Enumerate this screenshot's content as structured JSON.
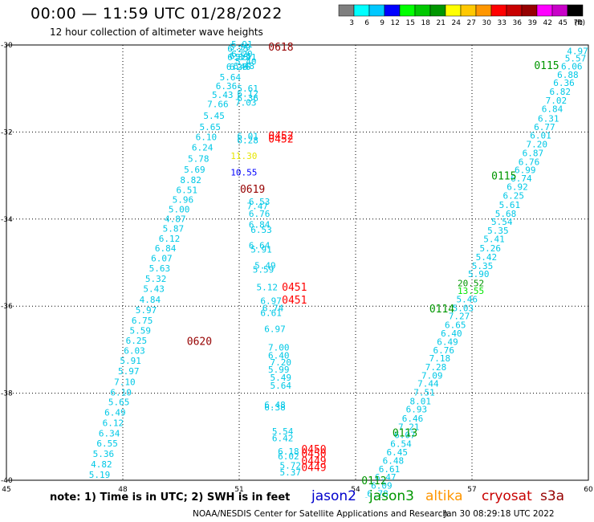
{
  "header": {
    "title": "00:00 — 11:59 UTC 01/28/2022",
    "subtitle": "12 hour collection of altimeter wave heights"
  },
  "colorbar": {
    "unit": "(ft)",
    "bins": [
      {
        "label": "3",
        "color": "#7f7f7f"
      },
      {
        "label": "6",
        "color": "#00ffff"
      },
      {
        "label": "9",
        "color": "#00c8ff"
      },
      {
        "label": "12",
        "color": "#0000ff"
      },
      {
        "label": "15",
        "color": "#00ff00"
      },
      {
        "label": "18",
        "color": "#00c800"
      },
      {
        "label": "21",
        "color": "#009600"
      },
      {
        "label": "24",
        "color": "#ffff00"
      },
      {
        "label": "27",
        "color": "#ffc800"
      },
      {
        "label": "30",
        "color": "#ff9600"
      },
      {
        "label": "33",
        "color": "#ff0000"
      },
      {
        "label": "36",
        "color": "#c80000"
      },
      {
        "label": "39",
        "color": "#960000"
      },
      {
        "label": "42",
        "color": "#ff00ff"
      },
      {
        "label": "45",
        "color": "#c800c8"
      },
      {
        "label": "70",
        "color": "#000000"
      }
    ]
  },
  "footer": {
    "note": "note:  1) Time is in UTC;  2) SWH is in feet",
    "legend": [
      {
        "name": "jason2",
        "color": "#0000cc"
      },
      {
        "name": "jason3",
        "color": "#009600"
      },
      {
        "name": "altika",
        "color": "#ff9600"
      },
      {
        "name": "cryosat",
        "color": "#c80000"
      },
      {
        "name": "s3a",
        "color": "#960000"
      }
    ],
    "credit": "NOAA/NESDIS Center for Satellite Applications and Research",
    "timestamp": "Jan 30 08:29:18 UTC 2022"
  },
  "chart_data": {
    "type": "scatter",
    "xlim": [
      45,
      60
    ],
    "ylim": [
      -40,
      -30
    ],
    "x_ticks": [
      "45",
      "48",
      "51",
      "54",
      "57",
      "60"
    ],
    "y_ticks": [
      "-30",
      "-32",
      "-34",
      "-36",
      "-38",
      "-40"
    ],
    "grid": true,
    "colors": {
      "cyan": "#00c8e6",
      "green": "#009600",
      "red": "#ff0000",
      "darkred": "#960000",
      "blue": "#0000ff",
      "yellow": "#e6e600",
      "lightgreen": "#00e600"
    },
    "time_labels": [
      {
        "x": 51.75,
        "y": -30.04,
        "text": "0618",
        "color": "darkred"
      },
      {
        "x": 51.02,
        "y": -33.3,
        "text": "0619",
        "color": "darkred"
      },
      {
        "x": 49.65,
        "y": -36.8,
        "text": "0620",
        "color": "darkred"
      },
      {
        "x": 51.75,
        "y": -32.08,
        "text": "0452",
        "color": "red"
      },
      {
        "x": 51.75,
        "y": -32.15,
        "text": "0452",
        "color": "red"
      },
      {
        "x": 52.1,
        "y": -35.55,
        "text": "0451",
        "color": "red"
      },
      {
        "x": 52.1,
        "y": -35.85,
        "text": "0451",
        "color": "red"
      },
      {
        "x": 52.6,
        "y": -39.28,
        "text": "0450",
        "color": "red"
      },
      {
        "x": 52.6,
        "y": -39.38,
        "text": "0450",
        "color": "red"
      },
      {
        "x": 52.6,
        "y": -39.55,
        "text": "0449",
        "color": "red"
      },
      {
        "x": 52.6,
        "y": -39.7,
        "text": "0449",
        "color": "red"
      },
      {
        "x": 58.6,
        "y": -30.46,
        "text": "0115",
        "color": "green"
      },
      {
        "x": 57.5,
        "y": -33.0,
        "text": "0115",
        "color": "green"
      },
      {
        "x": 55.9,
        "y": -36.05,
        "text": "0114",
        "color": "green"
      },
      {
        "x": 54.95,
        "y": -38.9,
        "text": "0113",
        "color": "green"
      },
      {
        "x": 54.15,
        "y": -40.0,
        "text": "0112",
        "color": "green"
      }
    ],
    "series": [
      {
        "values": [
          {
            "x": 51.07,
            "y": -29.98,
            "v": "5.91"
          },
          {
            "x": 51.02,
            "y": -30.05,
            "v": "5.59"
          },
          {
            "x": 50.97,
            "y": -30.08,
            "v": "6.25"
          },
          {
            "x": 50.97,
            "y": -30.28,
            "v": "6.85"
          },
          {
            "x": 51.02,
            "y": -30.25,
            "v": "6.53"
          },
          {
            "x": 51.07,
            "y": -30.2,
            "v": "6.20"
          },
          {
            "x": 50.94,
            "y": -30.5,
            "v": "6.26"
          },
          {
            "x": 51.02,
            "y": -30.5,
            "v": "6.46"
          },
          {
            "x": 50.77,
            "y": -30.74,
            "v": "5.64"
          },
          {
            "x": 50.67,
            "y": -30.94,
            "v": "6.36"
          },
          {
            "x": 50.57,
            "y": -31.14,
            "v": "5.43"
          },
          {
            "x": 50.45,
            "y": -31.36,
            "v": "7.66"
          },
          {
            "x": 50.35,
            "y": -31.62,
            "v": "5.45"
          },
          {
            "x": 50.25,
            "y": -31.88,
            "v": "5.65"
          },
          {
            "x": 50.15,
            "y": -32.11,
            "v": "6.10"
          },
          {
            "x": 50.05,
            "y": -32.35,
            "v": "6.24"
          },
          {
            "x": 49.95,
            "y": -32.61,
            "v": "5.78"
          },
          {
            "x": 49.85,
            "y": -32.86,
            "v": "5.69"
          },
          {
            "x": 49.75,
            "y": -33.1,
            "v": "8.82"
          },
          {
            "x": 49.65,
            "y": -33.33,
            "v": "6.51"
          },
          {
            "x": 49.55,
            "y": -33.55,
            "v": "5.96"
          },
          {
            "x": 49.45,
            "y": -33.77,
            "v": "5.00"
          },
          {
            "x": 49.35,
            "y": -33.99,
            "v": "4.87"
          },
          {
            "x": 49.3,
            "y": -34.22,
            "v": "5.87"
          },
          {
            "x": 49.2,
            "y": -34.45,
            "v": "6.12"
          },
          {
            "x": 49.1,
            "y": -34.67,
            "v": "6.84"
          },
          {
            "x": 49.0,
            "y": -34.9,
            "v": "6.07"
          },
          {
            "x": 48.95,
            "y": -35.13,
            "v": "5.63"
          },
          {
            "x": 48.85,
            "y": -35.37,
            "v": "5.32"
          },
          {
            "x": 48.8,
            "y": -35.6,
            "v": "5.43"
          },
          {
            "x": 48.7,
            "y": -35.85,
            "v": "4.84"
          },
          {
            "x": 48.6,
            "y": -36.09,
            "v": "5.97"
          },
          {
            "x": 48.5,
            "y": -36.33,
            "v": "6.75"
          },
          {
            "x": 48.45,
            "y": -36.56,
            "v": "5.59"
          },
          {
            "x": 48.35,
            "y": -36.79,
            "v": "6.25"
          },
          {
            "x": 48.3,
            "y": -37.02,
            "v": "6.03"
          },
          {
            "x": 48.2,
            "y": -37.25,
            "v": "5.91"
          },
          {
            "x": 48.15,
            "y": -37.49,
            "v": "5.97"
          },
          {
            "x": 48.05,
            "y": -37.74,
            "v": "7.10"
          },
          {
            "x": 47.95,
            "y": -37.98,
            "v": "6.10"
          },
          {
            "x": 47.9,
            "y": -38.2,
            "v": "5.65"
          },
          {
            "x": 47.8,
            "y": -38.44,
            "v": "6.49"
          },
          {
            "x": 47.75,
            "y": -38.68,
            "v": "6.12"
          },
          {
            "x": 47.65,
            "y": -38.92,
            "v": "6.34"
          },
          {
            "x": 47.6,
            "y": -39.15,
            "v": "6.55"
          },
          {
            "x": 47.5,
            "y": -39.39,
            "v": "5.36"
          },
          {
            "x": 47.45,
            "y": -39.63,
            "v": "4.82"
          },
          {
            "x": 47.4,
            "y": -39.87,
            "v": "5.19"
          }
        ],
        "color": "cyan"
      },
      {
        "values": [
          {
            "x": 51.17,
            "y": -30.28,
            "v": "5.91"
          },
          {
            "x": 51.17,
            "y": -30.38,
            "v": "5.40"
          },
          {
            "x": 51.12,
            "y": -30.48,
            "v": "6.48"
          },
          {
            "x": 51.22,
            "y": -31.0,
            "v": "5.61"
          },
          {
            "x": 51.22,
            "y": -31.12,
            "v": "6.12"
          },
          {
            "x": 51.22,
            "y": -31.22,
            "v": "6.36"
          },
          {
            "x": 51.17,
            "y": -31.32,
            "v": "7.03"
          },
          {
            "x": 51.22,
            "y": -32.09,
            "v": "6.01"
          },
          {
            "x": 51.22,
            "y": -32.19,
            "v": "6.28"
          },
          {
            "x": 51.12,
            "y": -32.92,
            "v": "10.55",
            "c": "blue"
          },
          {
            "x": 51.12,
            "y": -32.55,
            "v": "11.30",
            "c": "yellow"
          },
          {
            "x": 51.52,
            "y": -33.6,
            "v": "6.53"
          },
          {
            "x": 51.47,
            "y": -33.7,
            "v": "7.47"
          },
          {
            "x": 51.52,
            "y": -33.87,
            "v": "6.76"
          },
          {
            "x": 51.52,
            "y": -34.12,
            "v": "6.84"
          },
          {
            "x": 51.57,
            "y": -34.24,
            "v": "6.53"
          },
          {
            "x": 51.52,
            "y": -34.6,
            "v": "6.64"
          },
          {
            "x": 51.57,
            "y": -34.7,
            "v": "5.91"
          },
          {
            "x": 51.67,
            "y": -35.06,
            "v": "5.49"
          },
          {
            "x": 51.62,
            "y": -35.16,
            "v": "5.59"
          },
          {
            "x": 51.72,
            "y": -35.56,
            "v": "5.12"
          },
          {
            "x": 51.82,
            "y": -35.88,
            "v": "6.97"
          },
          {
            "x": 51.87,
            "y": -36.04,
            "v": "6.74"
          },
          {
            "x": 51.82,
            "y": -36.15,
            "v": "6.61"
          },
          {
            "x": 51.92,
            "y": -36.52,
            "v": "6.97"
          },
          {
            "x": 52.02,
            "y": -36.95,
            "v": "7.00"
          },
          {
            "x": 52.02,
            "y": -37.13,
            "v": "6.40"
          },
          {
            "x": 52.07,
            "y": -37.29,
            "v": "7.20"
          },
          {
            "x": 52.02,
            "y": -37.45,
            "v": "5.99"
          },
          {
            "x": 52.07,
            "y": -37.64,
            "v": "5.49"
          },
          {
            "x": 52.07,
            "y": -37.82,
            "v": "5.64"
          },
          {
            "x": 51.92,
            "y": -38.27,
            "v": "6.48"
          },
          {
            "x": 51.92,
            "y": -38.32,
            "v": "6.38"
          },
          {
            "x": 52.12,
            "y": -38.87,
            "v": "5.54"
          },
          {
            "x": 52.12,
            "y": -39.03,
            "v": "6.42"
          },
          {
            "x": 52.27,
            "y": -39.34,
            "v": "6.18"
          },
          {
            "x": 52.27,
            "y": -39.45,
            "v": "6.02"
          },
          {
            "x": 52.32,
            "y": -39.66,
            "v": "5.72"
          },
          {
            "x": 52.32,
            "y": -39.82,
            "v": "5.37"
          }
        ],
        "color": "cyan"
      },
      {
        "values": [
          {
            "x": 59.72,
            "y": -30.14,
            "v": "4.97"
          },
          {
            "x": 59.67,
            "y": -30.3,
            "v": "5.57"
          },
          {
            "x": 59.57,
            "y": -30.49,
            "v": "6.06"
          },
          {
            "x": 59.47,
            "y": -30.68,
            "v": "6.88"
          },
          {
            "x": 59.37,
            "y": -30.87,
            "v": "6.36"
          },
          {
            "x": 59.27,
            "y": -31.07,
            "v": "6.82"
          },
          {
            "x": 59.17,
            "y": -31.27,
            "v": "7.02"
          },
          {
            "x": 59.07,
            "y": -31.47,
            "v": "6.84"
          },
          {
            "x": 58.97,
            "y": -31.69,
            "v": "6.31"
          },
          {
            "x": 58.87,
            "y": -31.88,
            "v": "6.77"
          },
          {
            "x": 58.77,
            "y": -32.08,
            "v": "6.01"
          },
          {
            "x": 58.67,
            "y": -32.28,
            "v": "7.20"
          },
          {
            "x": 58.57,
            "y": -32.48,
            "v": "6.87"
          },
          {
            "x": 58.47,
            "y": -32.68,
            "v": "6.76"
          },
          {
            "x": 58.37,
            "y": -32.87,
            "v": "6.99"
          },
          {
            "x": 58.27,
            "y": -33.06,
            "v": "6.74"
          },
          {
            "x": 58.17,
            "y": -33.26,
            "v": "6.92"
          },
          {
            "x": 58.07,
            "y": -33.46,
            "v": "6.25"
          },
          {
            "x": 57.97,
            "y": -33.67,
            "v": "5.61"
          },
          {
            "x": 57.87,
            "y": -33.87,
            "v": "5.68"
          },
          {
            "x": 57.77,
            "y": -34.06,
            "v": "5.54"
          },
          {
            "x": 57.67,
            "y": -34.26,
            "v": "5.35"
          },
          {
            "x": 57.57,
            "y": -34.46,
            "v": "5.41"
          },
          {
            "x": 57.47,
            "y": -34.67,
            "v": "5.26"
          },
          {
            "x": 57.37,
            "y": -34.87,
            "v": "5.42"
          },
          {
            "x": 57.27,
            "y": -35.07,
            "v": "5.35"
          },
          {
            "x": 57.17,
            "y": -35.26,
            "v": "5.90"
          },
          {
            "x": 56.97,
            "y": -35.47,
            "v": "20.52",
            "c": "green"
          },
          {
            "x": 56.97,
            "y": -35.65,
            "v": "13.55",
            "c": "lightgreen"
          },
          {
            "x": 56.87,
            "y": -35.84,
            "v": "5.46"
          },
          {
            "x": 56.77,
            "y": -36.04,
            "v": "5.03"
          },
          {
            "x": 56.67,
            "y": -36.23,
            "v": "7.27"
          },
          {
            "x": 56.57,
            "y": -36.43,
            "v": "6.65"
          },
          {
            "x": 56.47,
            "y": -36.62,
            "v": "6.40"
          },
          {
            "x": 56.37,
            "y": -36.82,
            "v": "6.49"
          },
          {
            "x": 56.27,
            "y": -37.01,
            "v": "6.76"
          },
          {
            "x": 56.17,
            "y": -37.2,
            "v": "7.18"
          },
          {
            "x": 56.07,
            "y": -37.4,
            "v": "7.28"
          },
          {
            "x": 55.97,
            "y": -37.59,
            "v": "7.09"
          },
          {
            "x": 55.87,
            "y": -37.78,
            "v": "7.44"
          },
          {
            "x": 55.77,
            "y": -37.98,
            "v": "7.51"
          },
          {
            "x": 55.67,
            "y": -38.18,
            "v": "8.01"
          },
          {
            "x": 55.57,
            "y": -38.37,
            "v": "6.93"
          },
          {
            "x": 55.47,
            "y": -38.58,
            "v": "6.46"
          },
          {
            "x": 55.37,
            "y": -38.77,
            "v": "7.21"
          },
          {
            "x": 55.27,
            "y": -38.96,
            "v": "6.07"
          },
          {
            "x": 55.17,
            "y": -39.16,
            "v": "6.54"
          },
          {
            "x": 55.07,
            "y": -39.35,
            "v": "6.45"
          },
          {
            "x": 54.97,
            "y": -39.55,
            "v": "6.48"
          },
          {
            "x": 54.87,
            "y": -39.74,
            "v": "6.61"
          },
          {
            "x": 54.77,
            "y": -39.93,
            "v": "6.47"
          },
          {
            "x": 54.67,
            "y": -40.12,
            "v": "6.09"
          },
          {
            "x": 54.57,
            "y": -40.3,
            "v": "6.78"
          },
          {
            "x": 54.47,
            "y": -40.47,
            "v": "6.09"
          }
        ],
        "color": "cyan"
      }
    ]
  }
}
